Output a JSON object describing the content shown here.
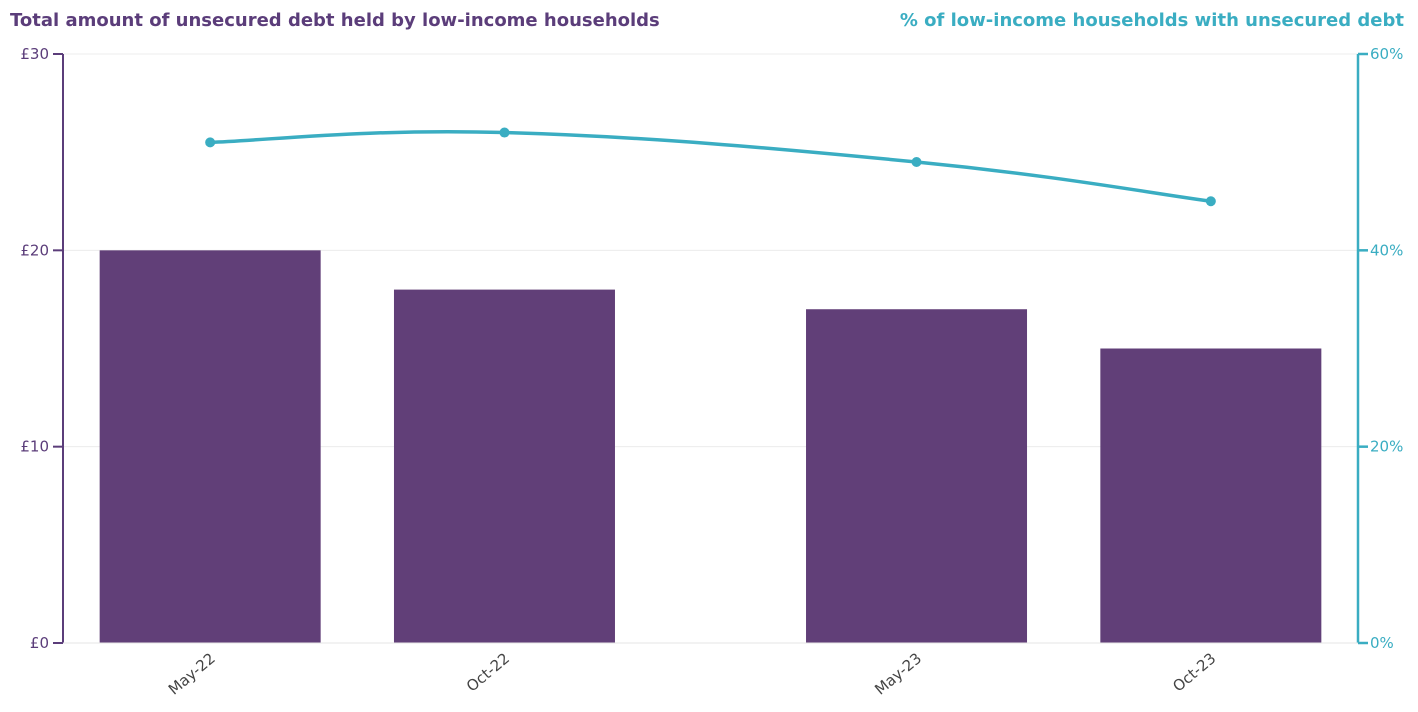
{
  "chart_data": {
    "type": "bar",
    "categories": [
      "May-22",
      "Oct-22",
      "May-23",
      "Oct-23"
    ],
    "x_positions": [
      1,
      2,
      3.4,
      4.4
    ],
    "series": [
      {
        "name": "Total amount of unsecured debt held by low-income households",
        "type": "bar",
        "axis": "left",
        "values": [
          20,
          18,
          17,
          15
        ],
        "color": "#613f78"
      },
      {
        "name": "% of low-income households with unsecured debt",
        "type": "line",
        "axis": "right",
        "values": [
          51,
          52,
          49,
          45
        ],
        "color": "#3aadc2"
      }
    ],
    "left_axis": {
      "label": "Total amount of unsecured debt held by low-income households",
      "ticks": [
        "£0",
        "£10",
        "£20",
        "£30"
      ],
      "ylim": [
        0,
        30
      ],
      "color": "#5b3d7a"
    },
    "right_axis": {
      "label": "% of low-income households with unsecured debt",
      "ticks": [
        "0%",
        "20%",
        "40%",
        "60%"
      ],
      "ylim": [
        0,
        60
      ],
      "color": "#3aadc2"
    },
    "grid": true,
    "legend": "none"
  }
}
